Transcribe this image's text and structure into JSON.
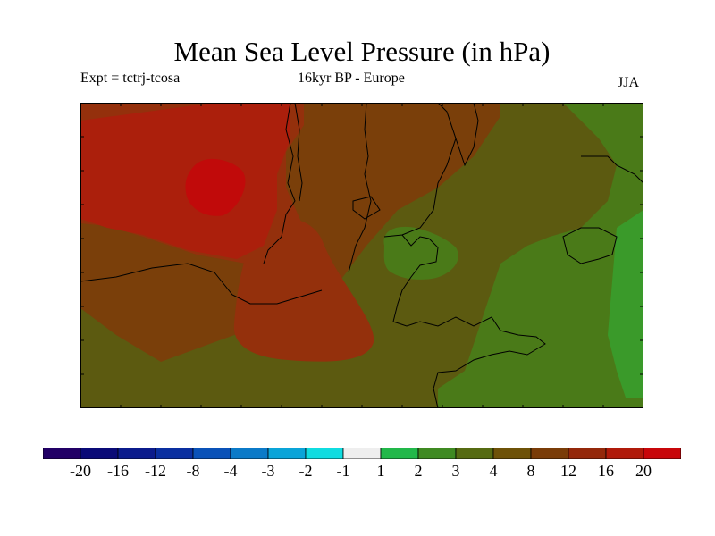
{
  "title": "Mean Sea Level Pressure (in hPa)",
  "subtitle": {
    "experiment": "Expt = tctrj-tcosa",
    "period_region": "16kyr BP - Europe",
    "season": "JJA"
  },
  "colorbar": {
    "colors": [
      "#220066",
      "#0a0a77",
      "#0b1b8c",
      "#0a2fa0",
      "#0a52b8",
      "#0b7ac8",
      "#0aa4d8",
      "#10dce0",
      "#eeeeee",
      "#22b84a",
      "#3f8a22",
      "#566b12",
      "#6e5208",
      "#7a3c08",
      "#94280a",
      "#b01a0a",
      "#c8060a"
    ],
    "labels": [
      "-20",
      "-16",
      "-12",
      "-8",
      "-4",
      "-3",
      "-2",
      "-1",
      "1",
      "2",
      "3",
      "4",
      "8",
      "12",
      "16",
      "20"
    ]
  },
  "palette": {
    "level_4_to_8": "#5c5a10",
    "level_8_to_12": "#7a3f0a",
    "level_12_to_16": "#94300c",
    "level_16_to_20": "#ab1f0c",
    "level_20_plus": "#c10a0a",
    "level_3_to_4": "#4a7a18",
    "level_2_to_3": "#3a9a2a",
    "coastline": "#000000",
    "frame": "#000000"
  }
}
